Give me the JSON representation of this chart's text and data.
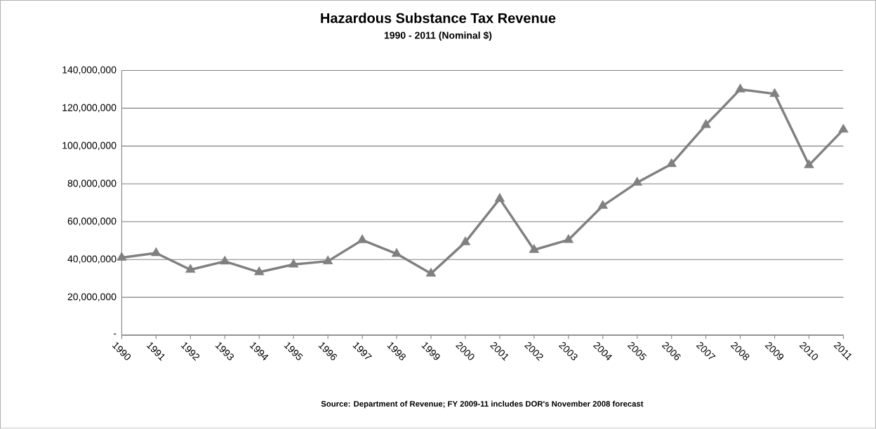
{
  "chart_data": {
    "type": "line",
    "title": "Hazardous Substance Tax Revenue",
    "subtitle": "1990 - 2011 (Nominal $)",
    "categories": [
      "1990",
      "1991",
      "1992",
      "1993",
      "1994",
      "1995",
      "1996",
      "1997",
      "1998",
      "1999",
      "2000",
      "2001",
      "2002",
      "2003",
      "2004",
      "2005",
      "2006",
      "2007",
      "2008",
      "2009",
      "2010",
      "2011"
    ],
    "values": [
      41000000,
      43400000,
      34600000,
      39000000,
      33300000,
      37400000,
      39100000,
      50300000,
      43000000,
      32600000,
      49200000,
      72100000,
      45100000,
      50400000,
      68400000,
      80700000,
      90500000,
      111200000,
      130000000,
      127600000,
      89900000,
      108700000
    ],
    "color": "#808080",
    "ylim": [
      0,
      140000000
    ],
    "yticks": [
      {
        "value": 0,
        "label": "-"
      },
      {
        "value": 20000000,
        "label": "20,000,000"
      },
      {
        "value": 40000000,
        "label": "40,000,000"
      },
      {
        "value": 60000000,
        "label": "60,000,000"
      },
      {
        "value": 80000000,
        "label": "80,000,000"
      },
      {
        "value": 100000000,
        "label": "100,000,000"
      },
      {
        "value": 120000000,
        "label": "120,000,000"
      },
      {
        "value": 140000000,
        "label": "140,000,000"
      }
    ],
    "grid": "y",
    "marker": "triangle",
    "line_style": "solid",
    "annotations": [
      "Source:  Department of Revenue; FY 2009-11 includes DOR's November 2008 forecast"
    ]
  }
}
